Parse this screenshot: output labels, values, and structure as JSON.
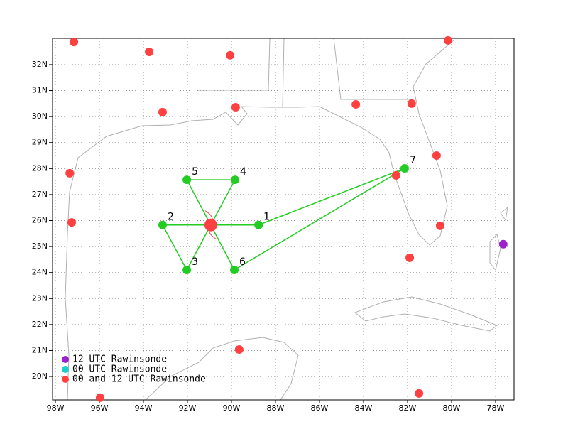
{
  "map": {
    "lonlim": [
      -98.13,
      -77.16
    ],
    "latlim": [
      19.1,
      33.01
    ],
    "lonticks": [
      {
        "value": -98,
        "label": "98W"
      },
      {
        "value": -96,
        "label": "96W"
      },
      {
        "value": -94,
        "label": "94W"
      },
      {
        "value": -92,
        "label": "92W"
      },
      {
        "value": -90,
        "label": "90W"
      },
      {
        "value": -88,
        "label": "88W"
      },
      {
        "value": -86,
        "label": "86W"
      },
      {
        "value": -84,
        "label": "84W"
      },
      {
        "value": -82,
        "label": "82W"
      },
      {
        "value": -80,
        "label": "80W"
      },
      {
        "value": -78,
        "label": "78W"
      }
    ],
    "latticks": [
      {
        "value": 20,
        "label": "20N"
      },
      {
        "value": 21,
        "label": "21N"
      },
      {
        "value": 22,
        "label": "22N"
      },
      {
        "value": 23,
        "label": "23N"
      },
      {
        "value": 24,
        "label": "24N"
      },
      {
        "value": 25,
        "label": "25N"
      },
      {
        "value": 26,
        "label": "26N"
      },
      {
        "value": 27,
        "label": "27N"
      },
      {
        "value": 28,
        "label": "28N"
      },
      {
        "value": 29,
        "label": "29N"
      },
      {
        "value": 30,
        "label": "30N"
      },
      {
        "value": 31,
        "label": "31N"
      },
      {
        "value": 32,
        "label": "32N"
      }
    ],
    "grid": true,
    "center": {
      "lon": -90.94,
      "lat": 25.83,
      "color": "#ff4040"
    },
    "points": [
      {
        "label": "1",
        "lon": -88.77,
        "lat": 25.83
      },
      {
        "label": "2",
        "lon": -93.13,
        "lat": 25.83
      },
      {
        "label": "3",
        "lon": -92.03,
        "lat": 24.1
      },
      {
        "label": "4",
        "lon": -89.84,
        "lat": 27.57
      },
      {
        "label": "5",
        "lon": -92.03,
        "lat": 27.57
      },
      {
        "label": "6",
        "lon": -89.87,
        "lat": 24.1
      },
      {
        "label": "7",
        "lon": -82.13,
        "lat": 28.01
      }
    ],
    "point_color": "#22cc22",
    "legend": [
      {
        "name": "12 UTC Rawinsonde",
        "color": "#9922cc"
      },
      {
        "name": "00 UTC Rawinsonde",
        "color": "#22cccc"
      },
      {
        "name": "00 and 12 UTC Rawinsonde",
        "color": "#ff4040"
      }
    ],
    "stations": [
      {
        "lon": -97.16,
        "lat": 32.87,
        "kind": 2
      },
      {
        "lon": -93.74,
        "lat": 32.49,
        "kind": 2
      },
      {
        "lon": -90.06,
        "lat": 32.36,
        "kind": 2
      },
      {
        "lon": -80.16,
        "lat": 32.93,
        "kind": 2
      },
      {
        "lon": -93.13,
        "lat": 30.17,
        "kind": 2
      },
      {
        "lon": -89.81,
        "lat": 30.36,
        "kind": 2
      },
      {
        "lon": -84.35,
        "lat": 30.47,
        "kind": 2
      },
      {
        "lon": -81.81,
        "lat": 30.5,
        "kind": 2
      },
      {
        "lon": -80.68,
        "lat": 28.5,
        "kind": 2
      },
      {
        "lon": -97.35,
        "lat": 27.82,
        "kind": 2
      },
      {
        "lon": -82.52,
        "lat": 27.74,
        "kind": 2
      },
      {
        "lon": -97.26,
        "lat": 25.93,
        "kind": 2
      },
      {
        "lon": -80.52,
        "lat": 25.8,
        "kind": 2
      },
      {
        "lon": -81.9,
        "lat": 24.57,
        "kind": 2
      },
      {
        "lon": -89.65,
        "lat": 21.04,
        "kind": 2
      },
      {
        "lon": -95.97,
        "lat": 19.19,
        "kind": 2
      },
      {
        "lon": -81.48,
        "lat": 19.35,
        "kind": 2
      },
      {
        "lon": -77.65,
        "lat": 25.09,
        "kind": 0
      }
    ]
  }
}
